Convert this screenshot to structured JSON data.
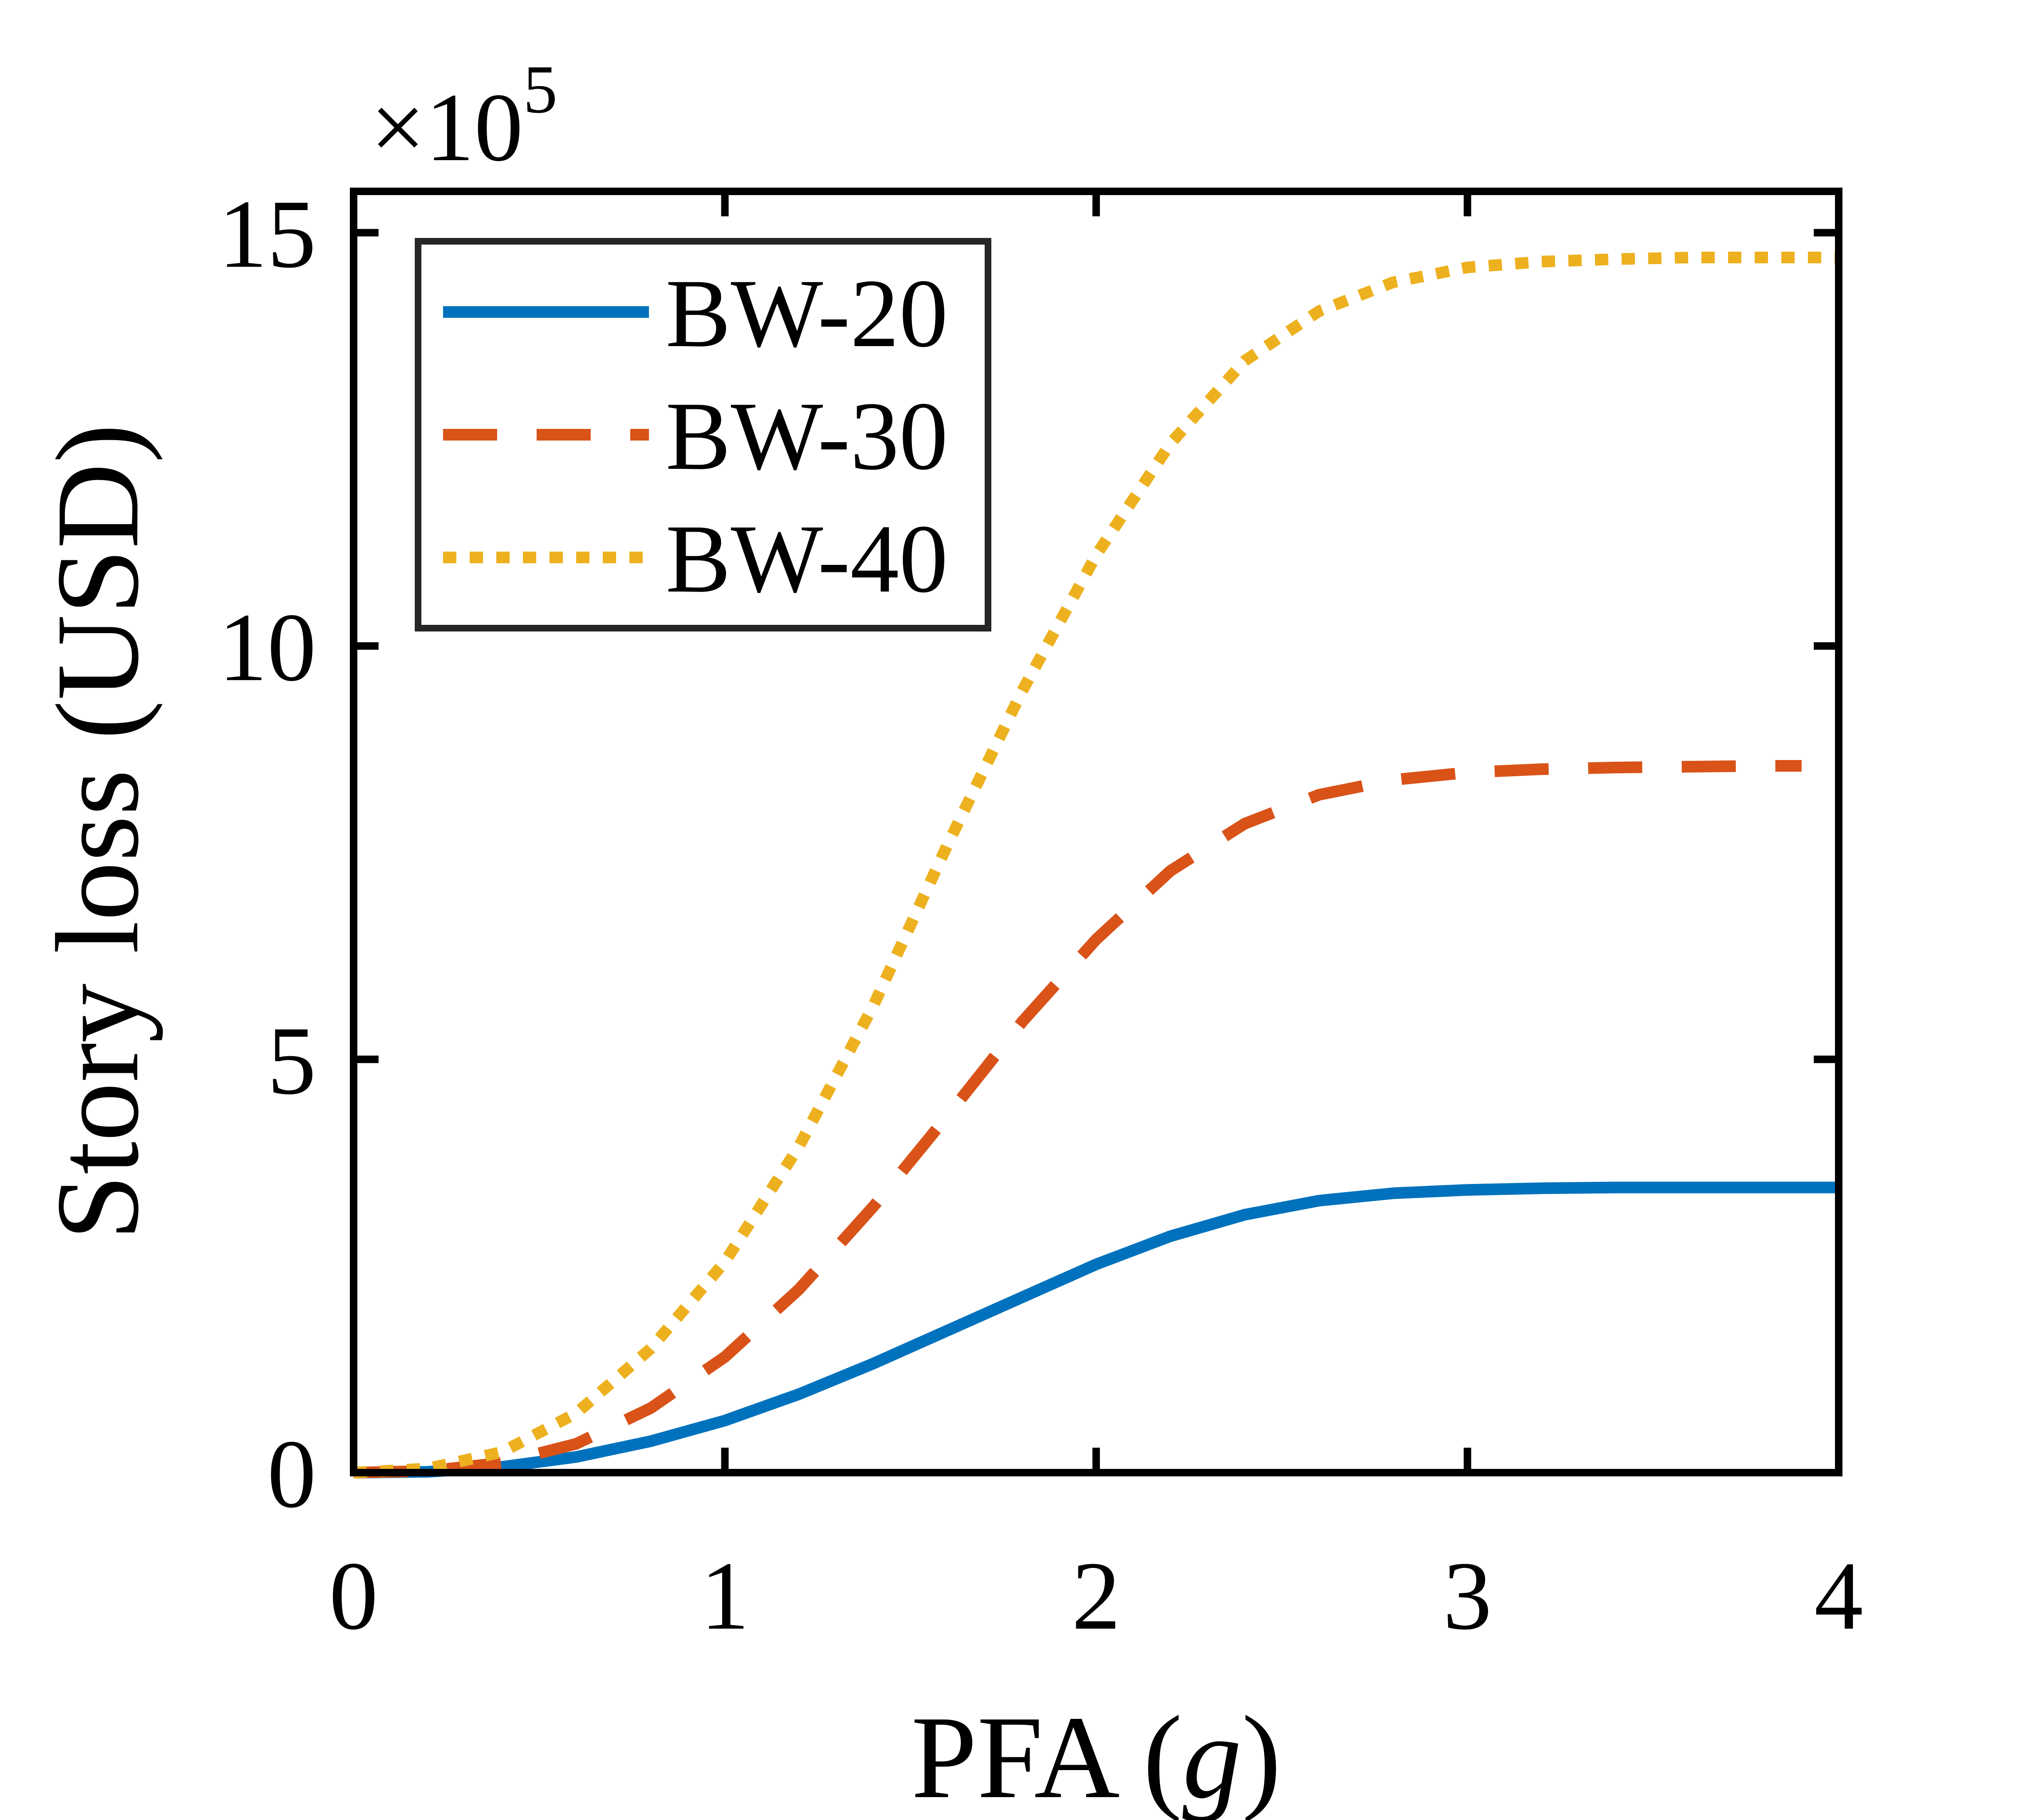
{
  "chart_data": {
    "type": "line",
    "xlabel_prefix": "PFA (",
    "xlabel_italic": "g",
    "xlabel_suffix": ")",
    "ylabel": "Story loss (USD)",
    "y_multiplier": {
      "base": "×10",
      "exponent": "5"
    },
    "xlim": [
      0,
      4
    ],
    "ylim": [
      0,
      15.5
    ],
    "xticks": [
      0,
      1,
      2,
      3,
      4
    ],
    "xtick_labels": [
      "0",
      "1",
      "2",
      "3",
      "4"
    ],
    "yticks": [
      0,
      5,
      10,
      15
    ],
    "ytick_labels": [
      "0",
      "5",
      "10",
      "15"
    ],
    "grid": false,
    "legend_position": "top-left",
    "series": [
      {
        "name": "BW-20",
        "color": "#0072BD",
        "style": "solid",
        "x": [
          0,
          0.2,
          0.4,
          0.6,
          0.8,
          1.0,
          1.2,
          1.4,
          1.6,
          1.8,
          2.0,
          2.2,
          2.4,
          2.6,
          2.8,
          3.0,
          3.2,
          3.4,
          3.6,
          3.8,
          4.0
        ],
        "y": [
          0,
          0.01,
          0.07,
          0.19,
          0.38,
          0.63,
          0.95,
          1.32,
          1.72,
          2.12,
          2.52,
          2.86,
          3.12,
          3.29,
          3.38,
          3.42,
          3.44,
          3.45,
          3.45,
          3.45,
          3.45
        ]
      },
      {
        "name": "BW-30",
        "color": "#D95319",
        "style": "dashed",
        "x": [
          0,
          0.2,
          0.4,
          0.6,
          0.8,
          1.0,
          1.2,
          1.4,
          1.6,
          1.8,
          2.0,
          2.2,
          2.4,
          2.6,
          2.8,
          3.0,
          3.2,
          3.4,
          3.6,
          3.8,
          3.9
        ],
        "y": [
          0,
          0.02,
          0.12,
          0.35,
          0.78,
          1.4,
          2.22,
          3.22,
          4.32,
          5.45,
          6.45,
          7.28,
          7.85,
          8.2,
          8.38,
          8.47,
          8.51,
          8.53,
          8.54,
          8.55,
          8.55
        ]
      },
      {
        "name": "BW-40",
        "color": "#EDB120",
        "style": "dotted",
        "x": [
          0,
          0.2,
          0.4,
          0.6,
          0.8,
          1.0,
          1.2,
          1.4,
          1.6,
          1.8,
          2.0,
          2.2,
          2.4,
          2.6,
          2.8,
          3.0,
          3.2,
          3.4,
          3.6,
          3.8,
          4.0
        ],
        "y": [
          0,
          0.05,
          0.25,
          0.72,
          1.5,
          2.55,
          3.95,
          5.65,
          7.6,
          9.45,
          11.1,
          12.45,
          13.45,
          14.05,
          14.4,
          14.58,
          14.65,
          14.68,
          14.7,
          14.7,
          14.7
        ]
      }
    ]
  }
}
